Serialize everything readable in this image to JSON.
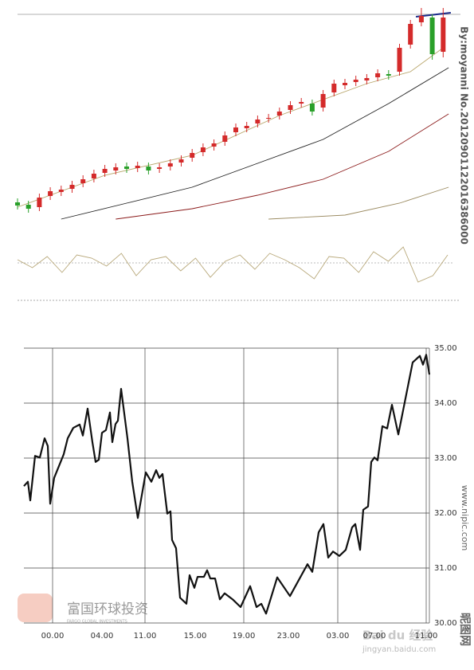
{
  "chart_data": [
    {
      "type": "candlestick",
      "open": [
        36,
        33,
        30,
        44,
        49,
        53,
        60,
        66,
        73,
        76,
        81,
        79,
        81,
        78,
        81,
        86,
        92,
        99,
        106,
        112,
        124,
        129,
        135,
        141,
        145,
        152,
        160,
        160,
        155,
        174,
        183,
        187,
        189,
        193,
        197,
        200,
        234,
        262,
        268,
        225
      ],
      "close": [
        32,
        28,
        42,
        50,
        52,
        58,
        65,
        72,
        78,
        80,
        78,
        82,
        76,
        80,
        85,
        90,
        98,
        105,
        110,
        120,
        130,
        132,
        140,
        142,
        150,
        158,
        162,
        150,
        172,
        185,
        186,
        190,
        192,
        198,
        195,
        230,
        260,
        270,
        222,
        268
      ],
      "high": [
        41,
        38,
        47,
        55,
        57,
        63,
        70,
        77,
        83,
        85,
        86,
        87,
        86,
        85,
        90,
        95,
        103,
        110,
        115,
        125,
        135,
        137,
        145,
        147,
        155,
        163,
        167,
        165,
        177,
        190,
        191,
        195,
        197,
        203,
        202,
        235,
        265,
        280,
        272,
        280
      ],
      "low": [
        27,
        23,
        25,
        39,
        44,
        48,
        55,
        61,
        68,
        71,
        73,
        74,
        71,
        73,
        76,
        81,
        87,
        94,
        101,
        107,
        119,
        124,
        130,
        136,
        140,
        147,
        155,
        145,
        150,
        169,
        178,
        182,
        184,
        188,
        190,
        195,
        229,
        257,
        215,
        218
      ],
      "up_color": "#d42a2a",
      "down_color": "#2aa02a",
      "ylim": [
        0,
        290
      ],
      "lines": [
        {
          "color": "#b8a56a",
          "x": [
            0,
            8,
            16,
            24,
            32,
            36,
            39
          ],
          "values": [
            30,
            70,
            95,
            145,
            185,
            200,
            230
          ]
        },
        {
          "color": "#222222",
          "x": [
            4,
            10,
            16,
            22,
            28,
            34,
            39.5
          ],
          "values": [
            15,
            35,
            55,
            85,
            115,
            160,
            205
          ]
        },
        {
          "color": "#8b1a1a",
          "x": [
            9,
            16,
            22,
            28,
            34,
            39.5
          ],
          "values": [
            15,
            28,
            45,
            65,
            100,
            147
          ]
        },
        {
          "color": "#9a8a60",
          "x": [
            23,
            30,
            35,
            39.5
          ],
          "values": [
            15,
            20,
            35,
            55
          ]
        },
        {
          "color": "#1a2a8a",
          "x": [
            36.5,
            39.7
          ],
          "values": [
            269,
            274
          ]
        }
      ]
    },
    {
      "type": "oscillator",
      "color": "#b8a87a",
      "ylim": [
        -15,
        15
      ],
      "values": [
        2,
        -3,
        4,
        -6,
        5,
        3,
        -2,
        6,
        -8,
        2,
        4,
        -5,
        3,
        -9,
        1,
        5,
        -4,
        6,
        2,
        -3,
        -10,
        4,
        3,
        -6,
        7,
        1,
        10,
        -12,
        -8,
        5
      ]
    },
    {
      "type": "line",
      "color": "#111111",
      "x": [
        0,
        0.5,
        0.8,
        1.4,
        2,
        2.6,
        3,
        3.3,
        3.8,
        5,
        5.5,
        6.2,
        7,
        7.4,
        8,
        8.6,
        9,
        9.4,
        9.8,
        10.3,
        10.8,
        11.1,
        11.5,
        11.8,
        12.2,
        13,
        13.6,
        14.3,
        15.3,
        16,
        16.6,
        17,
        17.4,
        18,
        18.4,
        18.6,
        19.1,
        19.6,
        20.4,
        20.8,
        21.4,
        21.8,
        22.6,
        23,
        23.4,
        24,
        24.6,
        25.2,
        26.2,
        27.2,
        28.4,
        29.2,
        29.8,
        30.4,
        31.8,
        33.4,
        35.6,
        36.2,
        37,
        37.6,
        38.2,
        38.8,
        39.6,
        40.4,
        41.2,
        41.6,
        42.2,
        42.6,
        43.2,
        43.6,
        44,
        44.4,
        45,
        45.6,
        46.2,
        47,
        48.8,
        49.7,
        50.1,
        50.5,
        50.9
      ],
      "values": [
        32.49,
        32.57,
        32.23,
        33.04,
        33.01,
        33.36,
        33.22,
        32.17,
        32.64,
        33.07,
        33.36,
        33.55,
        33.61,
        33.41,
        33.9,
        33.29,
        32.93,
        32.97,
        33.46,
        33.51,
        33.83,
        33.29,
        33.62,
        33.68,
        34.26,
        33.36,
        32.57,
        31.91,
        32.74,
        32.57,
        32.78,
        32.64,
        32.71,
        31.99,
        32.03,
        31.51,
        31.36,
        30.46,
        30.35,
        30.87,
        30.64,
        30.84,
        30.84,
        30.96,
        30.81,
        30.81,
        30.43,
        30.54,
        30.43,
        30.29,
        30.67,
        30.29,
        30.35,
        30.17,
        30.83,
        30.49,
        31.07,
        30.93,
        31.65,
        31.8,
        31.19,
        31.3,
        31.22,
        31.33,
        31.74,
        31.8,
        31.33,
        32.06,
        32.12,
        32.93,
        33.01,
        32.96,
        33.58,
        33.54,
        33.97,
        33.43,
        34.74,
        34.86,
        34.7,
        34.88,
        34.52
      ],
      "xlim": [
        0,
        50.9
      ],
      "xticks": [
        {
          "value": 3.6,
          "label": "00.00"
        },
        {
          "value": 9.8,
          "label": "04.00"
        },
        {
          "value": 15.2,
          "label": "11.00"
        },
        {
          "value": 21.5,
          "label": "15.00"
        },
        {
          "value": 27.6,
          "label": "19.00"
        },
        {
          "value": 33.2,
          "label": "23.00"
        },
        {
          "value": 39.4,
          "label": "03.00"
        },
        {
          "value": 44,
          "label": "07.00"
        },
        {
          "value": 50.5,
          "label": "11.00"
        }
      ],
      "ylim": [
        30,
        35
      ],
      "yticks": [
        {
          "value": 30,
          "label": "30.00"
        },
        {
          "value": 31,
          "label": "31.00"
        },
        {
          "value": 32,
          "label": "32.00"
        },
        {
          "value": 33,
          "label": "33.00"
        },
        {
          "value": 34,
          "label": "34.00"
        },
        {
          "value": 35,
          "label": "35.00"
        }
      ],
      "grid": true
    }
  ],
  "watermarks": {
    "side": "By:moyanni No.20120901122016386000",
    "site": "www.nipic.com",
    "site_cn": "昵图网",
    "logo": "富国环球投资",
    "logo_en": "FARGO GLOBAL INVESTMENTS",
    "baidu": "Bai du 经验",
    "baidu_url": "jingyan.baidu.com"
  }
}
